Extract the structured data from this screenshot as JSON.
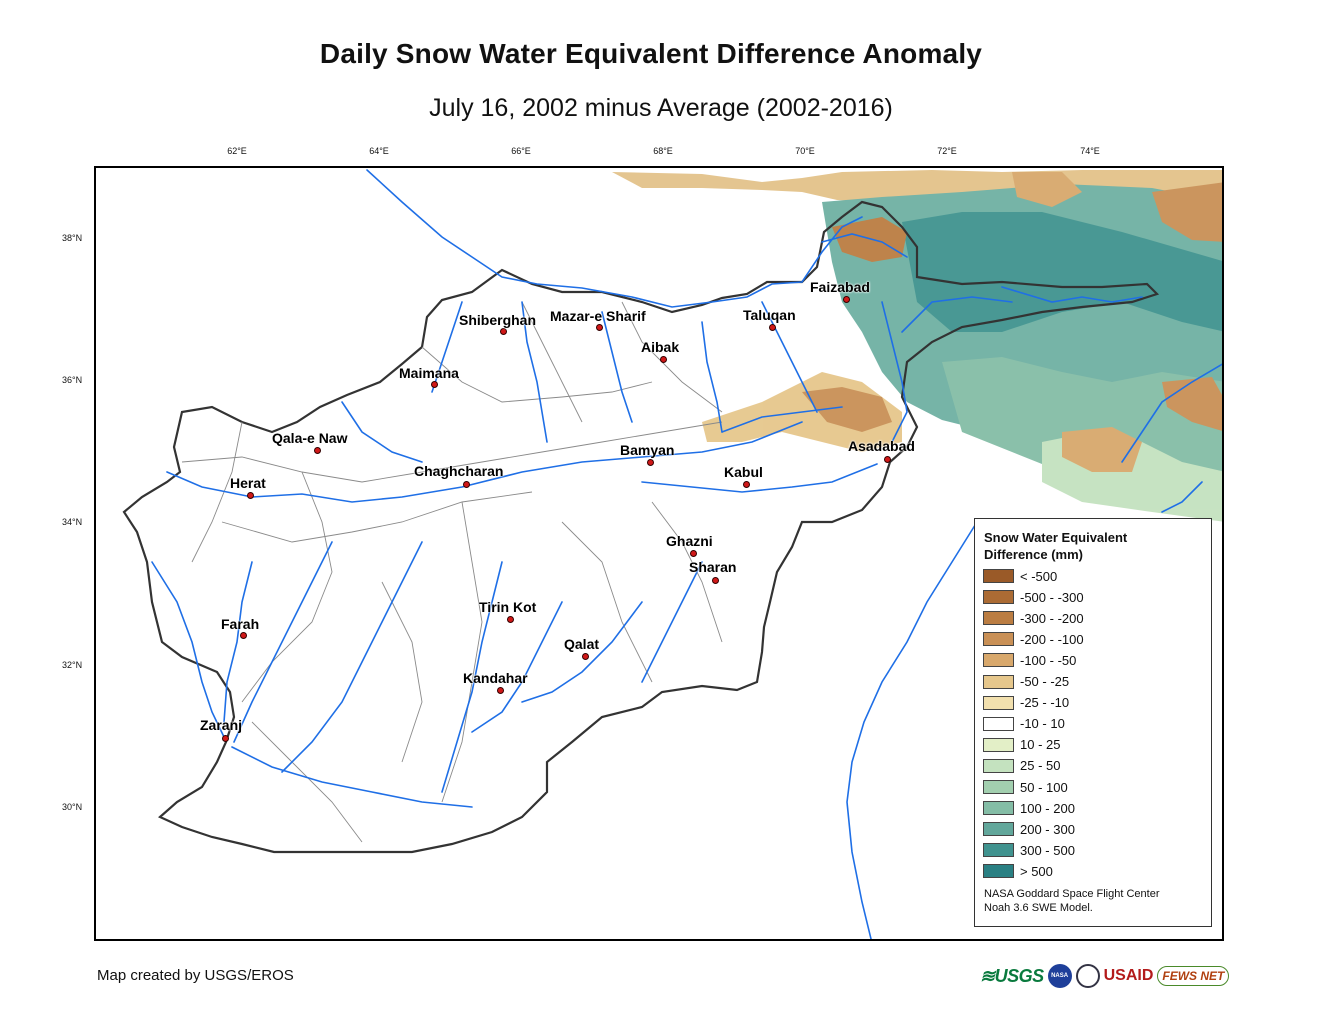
{
  "title": "Daily Snow Water Equivalent Difference Anomaly",
  "subtitle": "July 16, 2002 minus Average (2002-2016)",
  "longitude_ticks": [
    "62°E",
    "64°E",
    "66°E",
    "68°E",
    "70°E",
    "72°E",
    "74°E"
  ],
  "latitude_ticks": [
    "38°N",
    "36°N",
    "34°N",
    "32°N",
    "30°N"
  ],
  "cities": [
    {
      "name": "Faizabad",
      "lon": 70.58,
      "lat": 37.12
    },
    {
      "name": "Taluqan",
      "lon": 69.53,
      "lat": 36.73
    },
    {
      "name": "Shiberghan",
      "lon": 65.75,
      "lat": 36.67
    },
    {
      "name": "Mazar-e Sharif",
      "lon": 67.11,
      "lat": 36.71
    },
    {
      "name": "Aibak",
      "lon": 68.02,
      "lat": 36.26
    },
    {
      "name": "Maimana",
      "lon": 64.78,
      "lat": 35.93
    },
    {
      "name": "Qala-e Naw",
      "lon": 63.13,
      "lat": 35.01
    },
    {
      "name": "Bamyan",
      "lon": 67.82,
      "lat": 34.82
    },
    {
      "name": "Asadabad",
      "lon": 71.15,
      "lat": 34.87
    },
    {
      "name": "Herat",
      "lon": 62.2,
      "lat": 34.34
    },
    {
      "name": "Chaghcharan",
      "lon": 65.25,
      "lat": 34.52
    },
    {
      "name": "Kabul",
      "lon": 69.17,
      "lat": 34.53
    },
    {
      "name": "Ghazni",
      "lon": 68.42,
      "lat": 33.55
    },
    {
      "name": "Sharan",
      "lon": 68.78,
      "lat": 33.18
    },
    {
      "name": "Tirin Kot",
      "lon": 65.87,
      "lat": 32.63
    },
    {
      "name": "Farah",
      "lon": 62.11,
      "lat": 32.37
    },
    {
      "name": "Qalat",
      "lon": 66.9,
      "lat": 32.11
    },
    {
      "name": "Kandahar",
      "lon": 65.71,
      "lat": 31.61
    },
    {
      "name": "Zaranj",
      "lon": 61.88,
      "lat": 30.96
    }
  ],
  "legend": {
    "title_line1": "Snow Water Equivalent",
    "title_line2": "Difference (mm)",
    "items": [
      {
        "label": "< -500",
        "color": "#9a5a28"
      },
      {
        "label": "-500 - -300",
        "color": "#ab6b34"
      },
      {
        "label": "-300 - -200",
        "color": "#bb7d42"
      },
      {
        "label": "-200 - -100",
        "color": "#c99056"
      },
      {
        "label": "-100 - -50",
        "color": "#d8a86c"
      },
      {
        "label": "-50 - -25",
        "color": "#e6c78c"
      },
      {
        "label": "-25 - -10",
        "color": "#f2e0ae"
      },
      {
        "label": "-10 - 10",
        "color": "#ffffff"
      },
      {
        "label": "10 - 25",
        "color": "#e3efc7"
      },
      {
        "label": "25 - 50",
        "color": "#c4e2bf"
      },
      {
        "label": "50 - 100",
        "color": "#a2cfaf"
      },
      {
        "label": "100 - 200",
        "color": "#84bda6"
      },
      {
        "label": "200 - 300",
        "color": "#62a79b"
      },
      {
        "label": "300 - 500",
        "color": "#40938f"
      },
      {
        "label": "> 500",
        "color": "#2a8083"
      }
    ],
    "credit_line1": "NASA Goddard Space Flight Center",
    "credit_line2": "Noah 3.6 SWE Model."
  },
  "map_credit": "Map created by USGS/EROS",
  "logos": {
    "usgs": "≋USGS",
    "nasa": "NASA",
    "usaid": "USAID",
    "fews": "FEWS NET"
  },
  "colors": {
    "river": "#1f6fe6",
    "border": "#333333",
    "basin": "#888888",
    "city_marker": "#d01818"
  }
}
